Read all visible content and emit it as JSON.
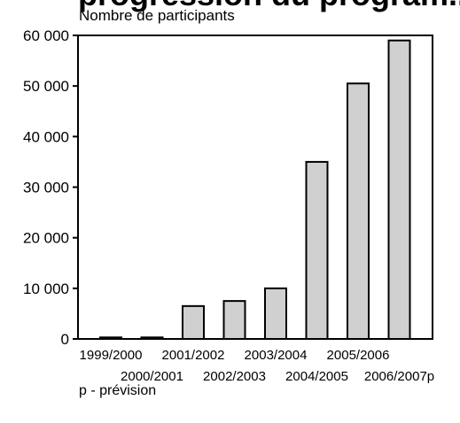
{
  "chart_data": {
    "type": "bar",
    "clipped_title": "progression du program...",
    "ylabel": "Nombre de participants",
    "xlabel": "",
    "footnote": "p - prévision",
    "categories": [
      "1999/2000",
      "2000/2001",
      "2001/2002",
      "2002/2003",
      "2003/2004",
      "2004/2005",
      "2005/2006",
      "2006/2007p"
    ],
    "values": [
      300,
      300,
      6500,
      7500,
      10000,
      35000,
      50500,
      59000
    ],
    "ylim": [
      0,
      60000
    ],
    "yticks": [
      0,
      10000,
      20000,
      30000,
      40000,
      50000,
      60000
    ],
    "ytick_labels": [
      "0",
      "10 000",
      "20 000",
      "30 000",
      "40 000",
      "50 000",
      "60 000"
    ],
    "bar_color": "#d0d0d0",
    "grid": false,
    "legend": "none"
  }
}
